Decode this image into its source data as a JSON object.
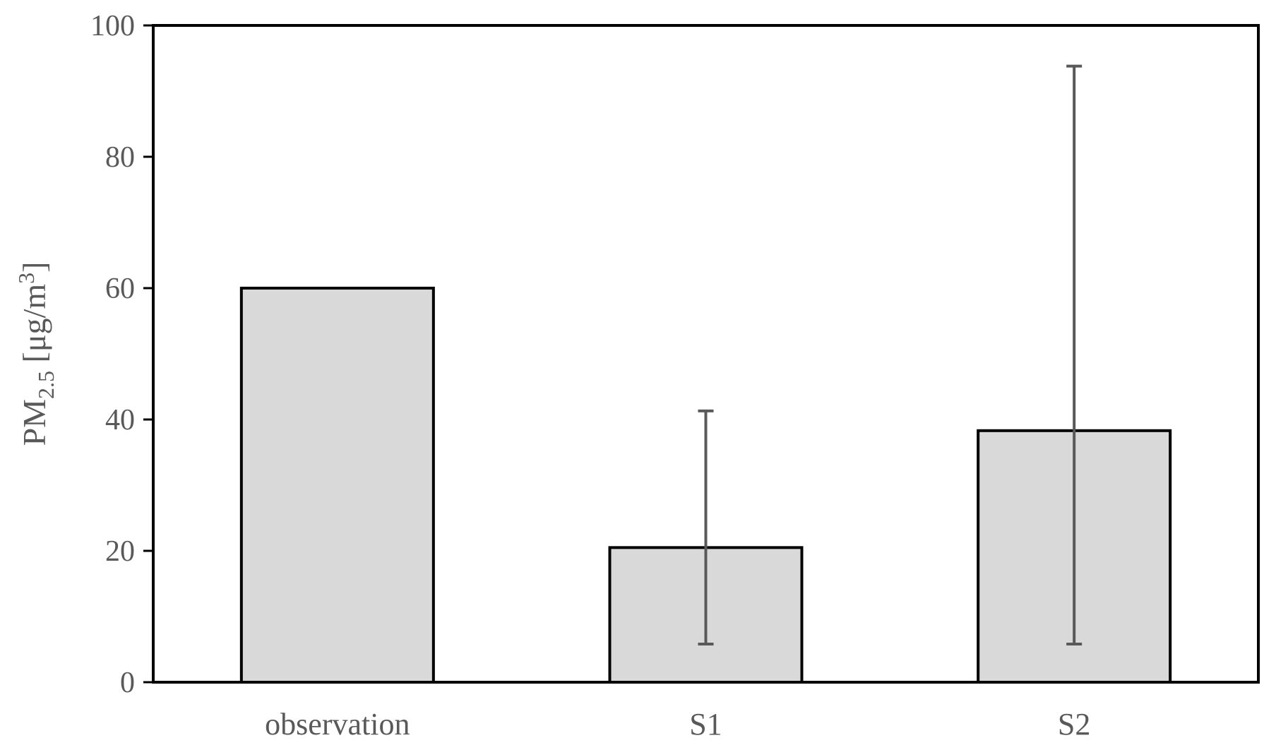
{
  "chart_data": {
    "type": "bar",
    "categories": [
      "observation",
      "S1",
      "S2"
    ],
    "values": [
      60,
      20.5,
      38.3
    ],
    "error_bars": [
      null,
      {
        "low": 5.8,
        "high": 41.3
      },
      {
        "low": 5.8,
        "high": 93.8
      }
    ],
    "ylabel": {
      "main": "PM",
      "subscript": "2.5",
      "unit_prefix": " [μg/m",
      "unit_superscript": "3",
      "unit_suffix": "]"
    },
    "xlabel": "",
    "ylim": [
      0,
      100
    ],
    "yticks": [
      0,
      20,
      40,
      60,
      80,
      100
    ],
    "grid": false,
    "legend": "none",
    "colors": {
      "bar_fill": "#d9d9d9",
      "bar_stroke": "#000000",
      "error_bar": "#595959",
      "frame": "#000000"
    }
  }
}
